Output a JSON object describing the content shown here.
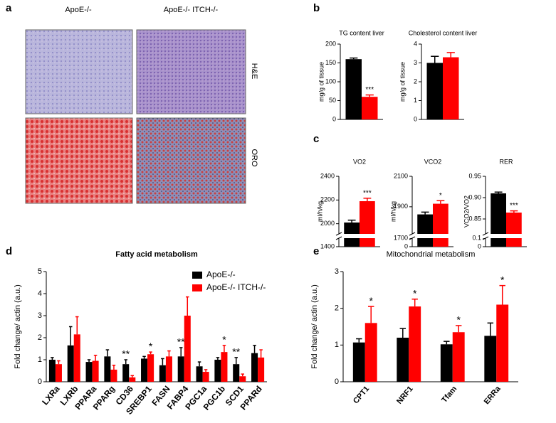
{
  "panel_letters": [
    "a",
    "b",
    "c",
    "d",
    "e"
  ],
  "panel_a": {
    "columns": [
      "ApoE-/-",
      "ApoE-/- ITCH-/-"
    ],
    "rows": [
      "H&E",
      "ORO"
    ]
  },
  "chart_data": [
    {
      "type": "bar",
      "title": "TG content liver",
      "ylabel": "mg/g of tissue",
      "ylim": [
        0,
        200
      ],
      "yticks": [
        0,
        50,
        100,
        150,
        200
      ],
      "series": [
        {
          "color": "#000000",
          "values": [
            160
          ],
          "errors": [
            3
          ]
        },
        {
          "color": "#ff0000",
          "values": [
            60
          ],
          "errors": [
            5
          ],
          "significance": [
            "***"
          ]
        }
      ]
    },
    {
      "type": "bar",
      "title": "Cholesterol content liver",
      "ylabel": "mg/g of tissue",
      "ylim": [
        0,
        4
      ],
      "yticks": [
        0,
        1,
        2,
        3,
        4
      ],
      "series": [
        {
          "color": "#000000",
          "values": [
            3.0
          ],
          "errors": [
            0.35
          ]
        },
        {
          "color": "#ff0000",
          "values": [
            3.3
          ],
          "errors": [
            0.25
          ]
        }
      ]
    },
    {
      "type": "bar",
      "title": "VO2",
      "ylabel": "ml/h/kg",
      "ylim": [
        1950,
        2400
      ],
      "yticks": [
        2000,
        2200,
        2400
      ],
      "lower_ticks": [
        1400
      ],
      "series": [
        {
          "color": "#000000",
          "values": [
            2010
          ],
          "errors": [
            20
          ]
        },
        {
          "color": "#ff0000",
          "values": [
            2190
          ],
          "errors": [
            25
          ],
          "significance": [
            "***"
          ]
        }
      ]
    },
    {
      "type": "bar",
      "title": "VCO2",
      "ylabel": "ml/h/kg",
      "ylim": [
        1750,
        2100
      ],
      "yticks": [
        1900,
        2100
      ],
      "lower_ticks": [
        0,
        1700
      ],
      "series": [
        {
          "color": "#000000",
          "values": [
            1850
          ],
          "errors": [
            15
          ]
        },
        {
          "color": "#ff0000",
          "values": [
            1920
          ],
          "errors": [
            20
          ],
          "significance": [
            "*"
          ]
        }
      ]
    },
    {
      "type": "bar",
      "title": "RER",
      "ylabel": "VCO2/VO2",
      "ylim": [
        0.825,
        0.95
      ],
      "yticks": [
        0.85,
        {
          "value": 0.9,
          "label": "0.90"
        },
        0.95
      ],
      "lower_ticks": [
        0,
        0.1
      ],
      "series": [
        {
          "color": "#000000",
          "values": [
            0.91
          ],
          "errors": [
            0.003
          ]
        },
        {
          "color": "#ff0000",
          "values": [
            0.865
          ],
          "errors": [
            0.004
          ],
          "significance": [
            "***"
          ]
        }
      ]
    },
    {
      "type": "bar",
      "title": "Fatty acid metabolism",
      "ylabel": "Fold change/ actin (a.u.)",
      "ylim": [
        0,
        5
      ],
      "yticks": [
        0,
        1,
        2,
        3,
        4,
        5
      ],
      "legend": "upper right",
      "categories": [
        "LXRa",
        "LXRb",
        "PPARa",
        "PPARg",
        "CD36",
        "SREBP1",
        "FASN",
        "FABP4",
        "PGC1a",
        "PGC1b",
        "SCD1",
        "PPARd"
      ],
      "series": [
        {
          "name": "ApoE-/-",
          "color": "#000000",
          "values": [
            1.0,
            1.65,
            0.9,
            1.15,
            0.8,
            1.05,
            0.75,
            1.15,
            0.7,
            1.0,
            0.8,
            1.3
          ],
          "errors": [
            0.1,
            0.85,
            0.1,
            0.3,
            0.2,
            0.1,
            0.3,
            0.4,
            0.2,
            0.1,
            0.3,
            0.35
          ],
          "significance": [
            null,
            null,
            null,
            null,
            "**",
            null,
            null,
            "**",
            null,
            null,
            "**",
            null
          ]
        },
        {
          "name": "ApoE-/- ITCH-/-",
          "color": "#ff0000",
          "values": [
            0.8,
            2.15,
            0.95,
            0.55,
            0.2,
            1.25,
            1.15,
            3.0,
            0.45,
            1.35,
            0.25,
            1.1
          ],
          "errors": [
            0.15,
            0.8,
            0.25,
            0.2,
            0.08,
            0.1,
            0.25,
            0.85,
            0.1,
            0.3,
            0.1,
            0.35
          ],
          "significance": [
            null,
            null,
            null,
            null,
            null,
            "*",
            null,
            null,
            null,
            "*",
            null,
            null
          ]
        }
      ]
    },
    {
      "type": "bar",
      "title": "Mitochondrial metabolism",
      "ylabel": "Fold change/ actin (a.u.)",
      "ylim": [
        0,
        3
      ],
      "yticks": [
        0,
        1,
        2,
        3
      ],
      "categories": [
        "CPT1",
        "NRF1",
        "Tfam",
        "ERRa"
      ],
      "series": [
        {
          "color": "#000000",
          "values": [
            1.07,
            1.2,
            1.02,
            1.25
          ],
          "errors": [
            0.1,
            0.25,
            0.08,
            0.35
          ]
        },
        {
          "color": "#ff0000",
          "values": [
            1.6,
            2.05,
            1.35,
            2.1
          ],
          "errors": [
            0.45,
            0.2,
            0.18,
            0.52
          ],
          "significance": [
            "*",
            "*",
            "*",
            "*"
          ]
        }
      ]
    }
  ]
}
